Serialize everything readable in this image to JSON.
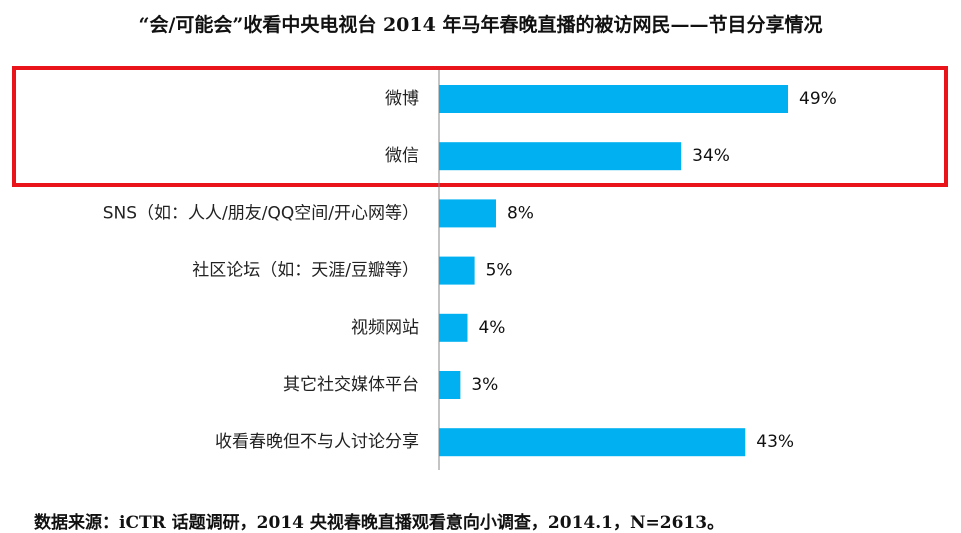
{
  "chart_data": {
    "type": "bar",
    "orientation": "horizontal",
    "title": "“会/可能会”收看中央电视台 2014 年马年春晚直播的被访网民——节目分享情况",
    "categories": [
      "微博",
      "微信",
      "SNS（如：人人/朋友/QQ空间/开心网等）",
      "社区论坛（如：天涯/豆瓣等）",
      "视频网站",
      "其它社交媒体平台",
      "收看春晚但不与人讨论分享"
    ],
    "values": [
      49,
      34,
      8,
      5,
      4,
      3,
      43
    ],
    "value_labels": [
      "49%",
      "34%",
      "8%",
      "5%",
      "4%",
      "3%",
      "43%"
    ],
    "unit": "%",
    "xlim": [
      0,
      55
    ],
    "bar_color": "#00b0f0",
    "highlight": {
      "categories": [
        "微博",
        "微信"
      ],
      "color": "#e8141a"
    },
    "grid": false,
    "legend": "none"
  },
  "source": "数据来源：iCTR 话题调研，2014 央视春晚直播观看意向小调查，2014.1，N=2613。"
}
